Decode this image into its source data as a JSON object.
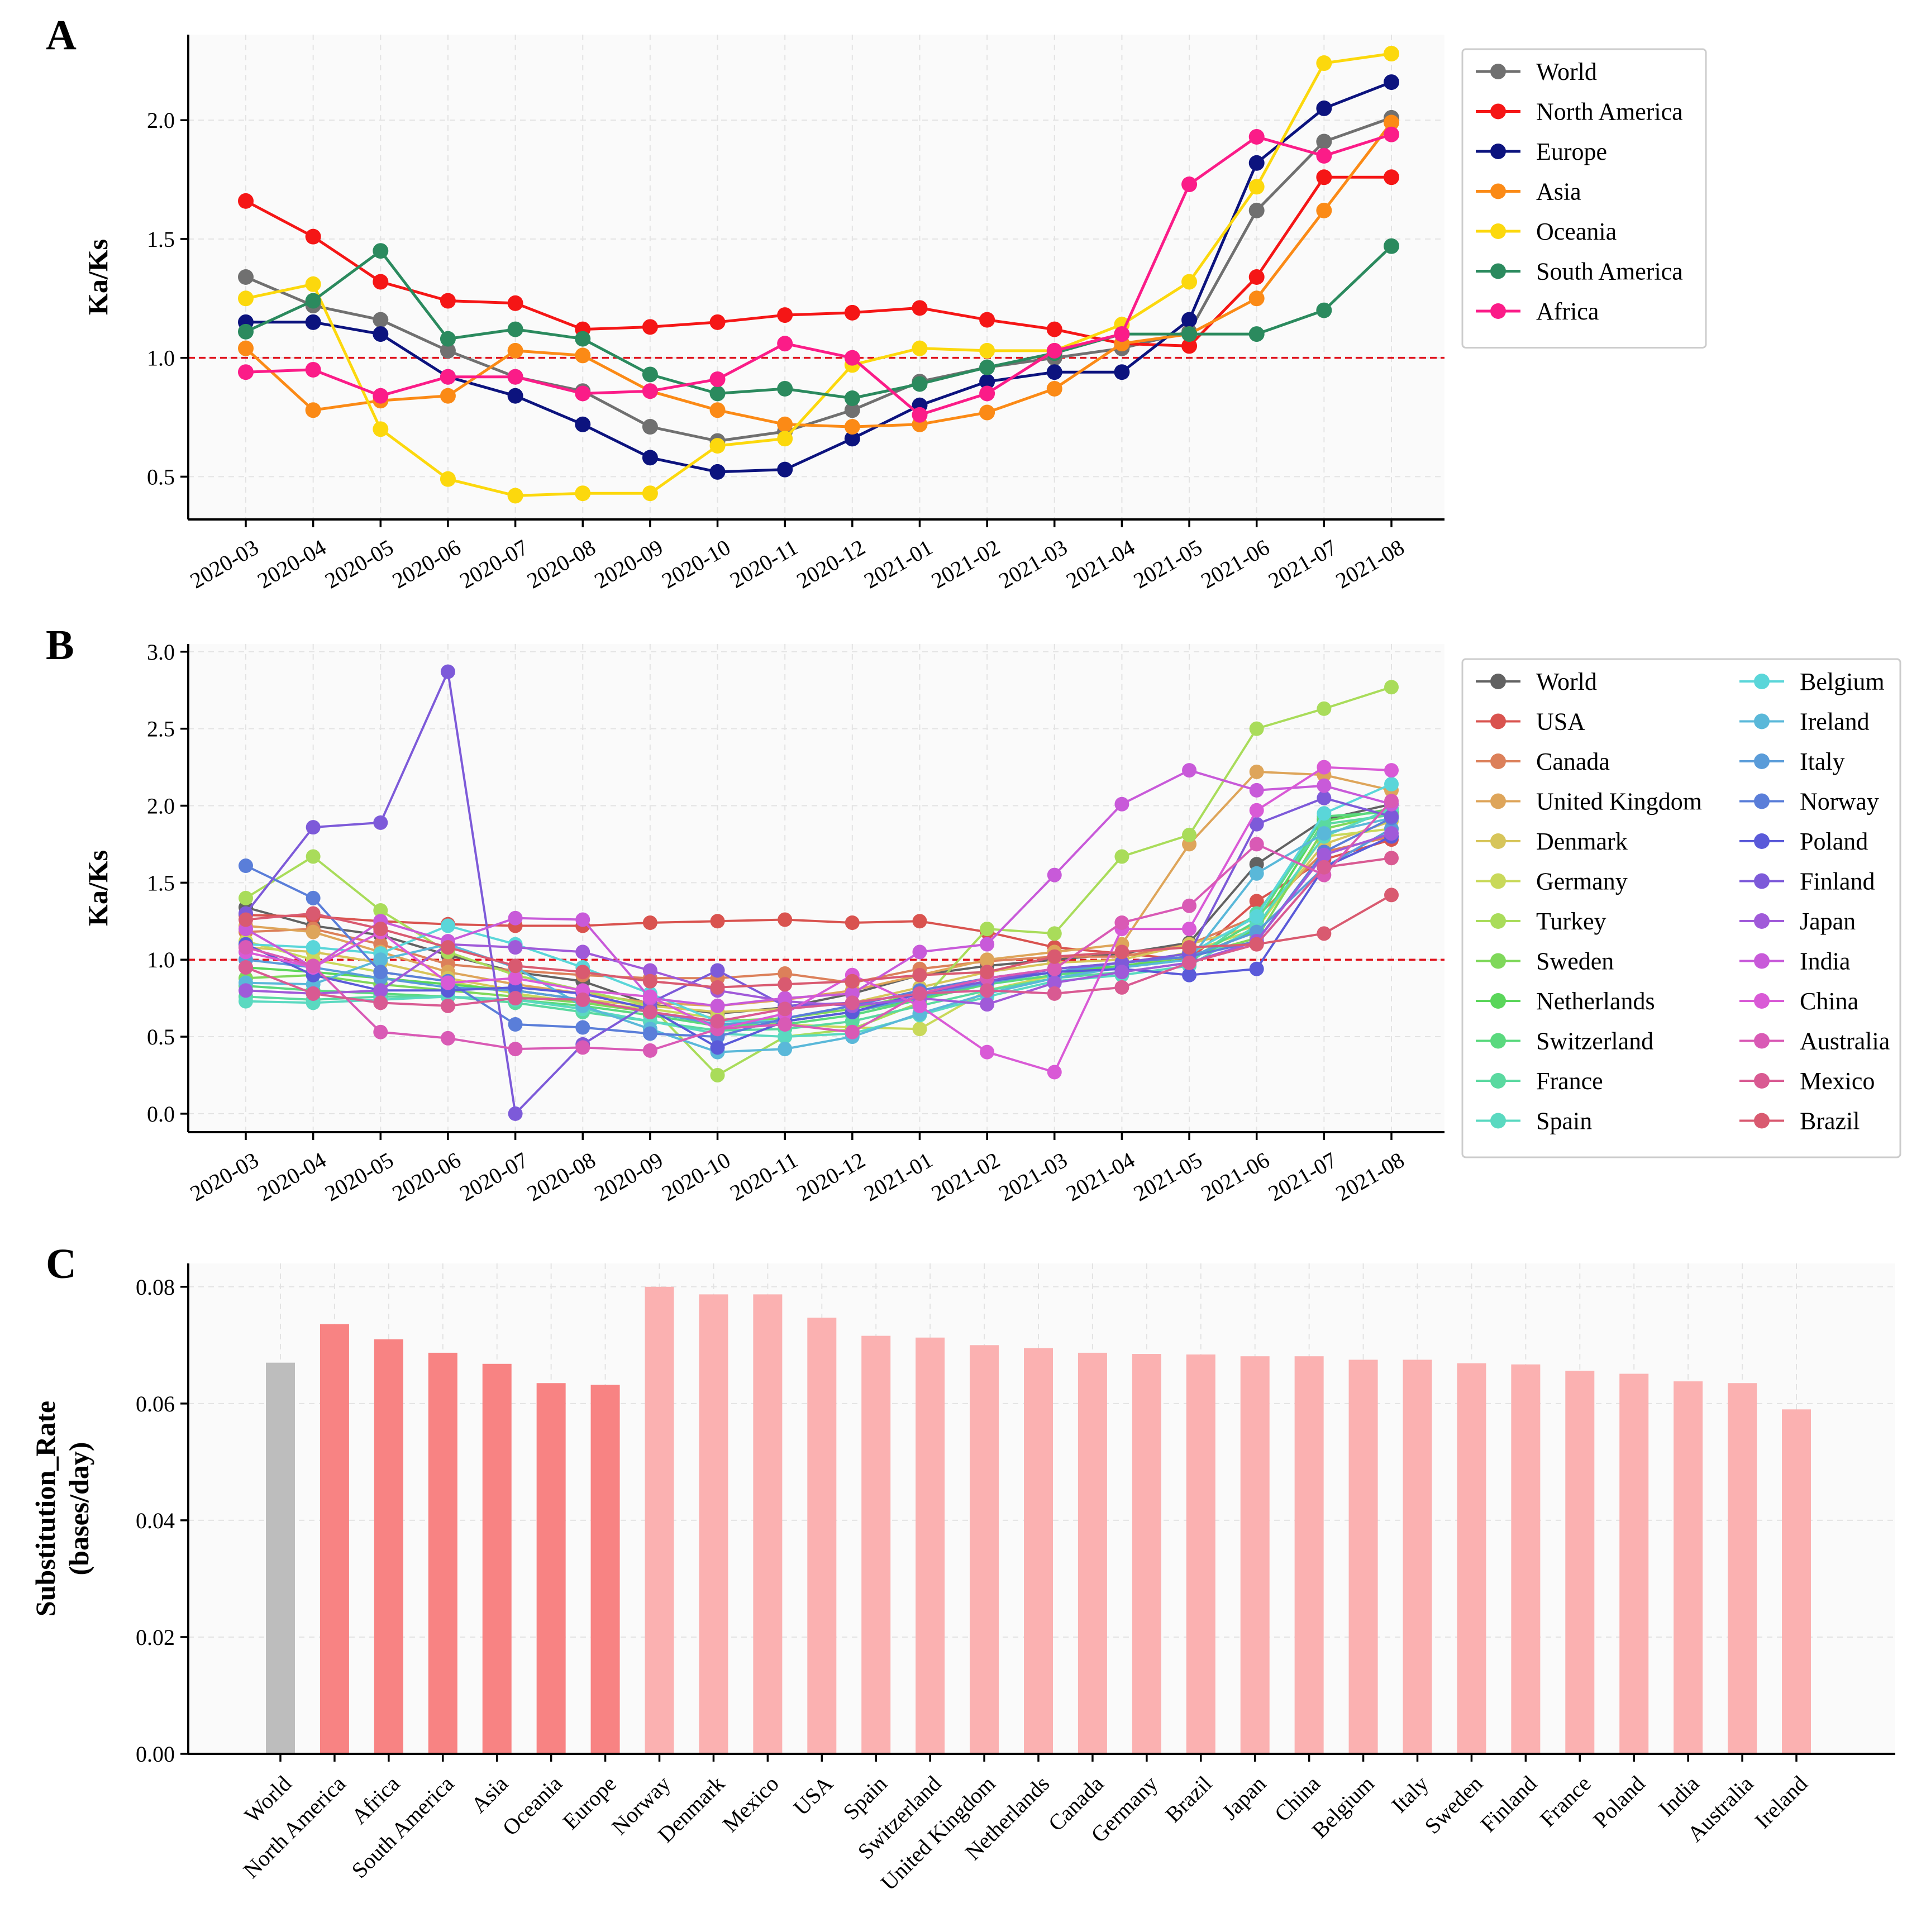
{
  "panel_labels": [
    "A",
    "B",
    "C"
  ],
  "chart_data": [
    {
      "type": "line",
      "panel": "A",
      "ylabel": "Ka/Ks",
      "xlabel": "",
      "ylim": [
        0.32,
        2.36
      ],
      "yticks": [
        0.5,
        1.0,
        1.5,
        2.0
      ],
      "grid": true,
      "reference_line": 1.0,
      "legend_position": "top-right outside",
      "legend_columns": 1,
      "categories": [
        "2020-03",
        "2020-04",
        "2020-05",
        "2020-06",
        "2020-07",
        "2020-08",
        "2020-09",
        "2020-10",
        "2020-11",
        "2020-12",
        "2021-01",
        "2021-02",
        "2021-03",
        "2021-04",
        "2021-05",
        "2021-06",
        "2021-07",
        "2021-08"
      ],
      "series": [
        {
          "name": "World",
          "color": "#707070",
          "values": [
            1.34,
            1.22,
            1.16,
            1.03,
            0.92,
            0.86,
            0.71,
            0.65,
            0.69,
            0.78,
            0.9,
            0.96,
            1.0,
            1.04,
            1.11,
            1.62,
            1.91,
            2.01
          ]
        },
        {
          "name": "North America",
          "color": "#f51616",
          "values": [
            1.66,
            1.51,
            1.32,
            1.24,
            1.23,
            1.12,
            1.13,
            1.15,
            1.18,
            1.19,
            1.21,
            1.16,
            1.12,
            1.06,
            1.05,
            1.34,
            1.76,
            1.76
          ]
        },
        {
          "name": "Europe",
          "color": "#0c137e",
          "values": [
            1.15,
            1.15,
            1.1,
            0.92,
            0.84,
            0.72,
            0.58,
            0.52,
            0.53,
            0.66,
            0.8,
            0.9,
            0.94,
            0.94,
            1.16,
            1.82,
            2.05,
            2.16
          ]
        },
        {
          "name": "Asia",
          "color": "#fb8a16",
          "values": [
            1.04,
            0.78,
            0.82,
            0.84,
            1.03,
            1.01,
            0.86,
            0.78,
            0.72,
            0.71,
            0.72,
            0.77,
            0.87,
            1.06,
            1.1,
            1.25,
            1.62,
            1.99
          ]
        },
        {
          "name": "Oceania",
          "color": "#fcd80d",
          "values": [
            1.25,
            1.31,
            0.7,
            0.49,
            0.42,
            0.43,
            0.43,
            0.63,
            0.66,
            0.97,
            1.04,
            1.03,
            1.03,
            1.14,
            1.32,
            1.72,
            2.24,
            2.28
          ]
        },
        {
          "name": "South America",
          "color": "#2b8a5e",
          "values": [
            1.11,
            1.24,
            1.45,
            1.08,
            1.12,
            1.08,
            0.93,
            0.85,
            0.87,
            0.83,
            0.89,
            0.96,
            1.02,
            1.1,
            1.1,
            1.1,
            1.2,
            1.47
          ]
        },
        {
          "name": "Africa",
          "color": "#fb1c88",
          "values": [
            0.94,
            0.95,
            0.84,
            0.92,
            0.92,
            0.85,
            0.86,
            0.91,
            1.06,
            1.0,
            0.76,
            0.85,
            1.03,
            1.1,
            1.73,
            1.93,
            1.85,
            1.94
          ]
        }
      ]
    },
    {
      "type": "line",
      "panel": "B",
      "ylabel": "Ka/Ks",
      "xlabel": "",
      "ylim": [
        -0.12,
        3.05
      ],
      "yticks": [
        0.0,
        0.5,
        1.0,
        1.5,
        2.0,
        2.5,
        3.0
      ],
      "grid": true,
      "reference_line": 1.0,
      "legend_position": "top-right outside",
      "legend_columns": 2,
      "categories": [
        "2020-03",
        "2020-04",
        "2020-05",
        "2020-06",
        "2020-07",
        "2020-08",
        "2020-09",
        "2020-10",
        "2020-11",
        "2020-12",
        "2021-01",
        "2021-02",
        "2021-03",
        "2021-04",
        "2021-05",
        "2021-06",
        "2021-07",
        "2021-08"
      ],
      "series": [
        {
          "name": "World",
          "color": "#626262",
          "values": [
            1.34,
            1.22,
            1.16,
            1.03,
            0.92,
            0.86,
            0.71,
            0.65,
            0.69,
            0.78,
            0.9,
            0.96,
            1.0,
            1.04,
            1.11,
            1.62,
            1.91,
            2.01
          ]
        },
        {
          "name": "USA",
          "color": "#d9534f",
          "values": [
            1.29,
            1.28,
            1.25,
            1.23,
            1.22,
            1.22,
            1.24,
            1.25,
            1.26,
            1.24,
            1.25,
            1.18,
            1.08,
            1.04,
            1.0,
            1.38,
            1.65,
            1.78
          ]
        },
        {
          "name": "Canada",
          "color": "#dc805a",
          "values": [
            1.18,
            1.2,
            1.1,
            0.97,
            0.93,
            0.9,
            0.88,
            0.88,
            0.91,
            0.85,
            0.94,
            0.99,
            1.02,
            1.02,
            1.1,
            1.28,
            1.7,
            1.8
          ]
        },
        {
          "name": "United Kingdom",
          "color": "#dea55a",
          "values": [
            1.22,
            1.18,
            1.05,
            0.92,
            0.84,
            0.78,
            0.72,
            0.7,
            0.74,
            0.8,
            0.9,
            1.0,
            1.05,
            1.1,
            1.75,
            2.22,
            2.2,
            2.1
          ]
        },
        {
          "name": "Denmark",
          "color": "#d7c55a",
          "values": [
            1.08,
            1.05,
            0.98,
            0.88,
            0.8,
            0.74,
            0.7,
            0.66,
            0.68,
            0.72,
            0.82,
            0.92,
            0.98,
            1.0,
            1.1,
            1.22,
            1.75,
            1.9
          ]
        },
        {
          "name": "Germany",
          "color": "#c9d95a",
          "values": [
            1.12,
            1.0,
            0.92,
            0.86,
            0.78,
            0.72,
            0.68,
            0.62,
            0.58,
            0.56,
            0.55,
            0.8,
            0.9,
            0.95,
            1.05,
            1.2,
            1.8,
            1.85
          ]
        },
        {
          "name": "Turkey",
          "color": "#a9dc5a",
          "values": [
            1.4,
            1.67,
            1.32,
            1.05,
            0.9,
            0.8,
            0.7,
            0.25,
            0.5,
            0.55,
            0.72,
            1.2,
            1.17,
            1.67,
            1.81,
            2.5,
            2.63,
            2.77
          ]
        },
        {
          "name": "Sweden",
          "color": "#7fd85a",
          "values": [
            0.88,
            0.9,
            0.84,
            0.8,
            0.76,
            0.72,
            0.66,
            0.6,
            0.62,
            0.68,
            0.78,
            0.86,
            0.92,
            0.96,
            1.02,
            1.14,
            1.85,
            1.95
          ]
        },
        {
          "name": "Netherlands",
          "color": "#5ad65a",
          "values": [
            0.95,
            0.92,
            0.88,
            0.84,
            0.8,
            0.74,
            0.66,
            0.58,
            0.6,
            0.66,
            0.75,
            0.85,
            0.92,
            0.96,
            1.0,
            1.2,
            1.9,
            1.98
          ]
        },
        {
          "name": "Switzerland",
          "color": "#5ad97e",
          "values": [
            0.83,
            0.8,
            0.78,
            0.76,
            0.74,
            0.7,
            0.64,
            0.57,
            0.58,
            0.64,
            0.74,
            0.84,
            0.9,
            0.95,
            1.0,
            1.25,
            1.93,
            1.96
          ]
        },
        {
          "name": "France",
          "color": "#5ad9a0",
          "values": [
            0.76,
            0.74,
            0.76,
            0.76,
            0.72,
            0.66,
            0.6,
            0.54,
            0.55,
            0.6,
            0.7,
            0.8,
            0.88,
            0.92,
            0.98,
            1.3,
            1.88,
            1.94
          ]
        },
        {
          "name": "Spain",
          "color": "#5ad9c0",
          "values": [
            0.73,
            0.72,
            0.74,
            0.76,
            0.74,
            0.68,
            0.6,
            0.52,
            0.5,
            0.52,
            0.64,
            0.76,
            0.86,
            0.9,
            0.96,
            1.22,
            1.8,
            1.98
          ]
        },
        {
          "name": "Belgium",
          "color": "#5ad6d9",
          "values": [
            1.1,
            1.08,
            1.04,
            1.22,
            1.1,
            0.95,
            0.78,
            0.6,
            0.6,
            0.66,
            0.76,
            0.86,
            0.92,
            0.98,
            1.04,
            1.28,
            1.95,
            2.14
          ]
        },
        {
          "name": "Ireland",
          "color": "#5ab8d9",
          "values": [
            0.85,
            0.84,
            1.0,
            1.1,
            0.95,
            0.7,
            0.55,
            0.4,
            0.42,
            0.5,
            0.65,
            0.78,
            0.88,
            0.95,
            1.0,
            1.56,
            1.82,
            1.92
          ]
        },
        {
          "name": "Italy",
          "color": "#5a9cd9",
          "values": [
            1.0,
            0.95,
            0.88,
            0.82,
            0.8,
            0.74,
            0.66,
            0.58,
            0.6,
            0.66,
            0.76,
            0.85,
            0.92,
            0.98,
            1.02,
            1.18,
            1.6,
            1.85
          ]
        },
        {
          "name": "Norway",
          "color": "#5a7ed9",
          "values": [
            1.61,
            1.4,
            0.92,
            0.86,
            0.58,
            0.56,
            0.52,
            0.5,
            0.62,
            0.7,
            0.8,
            0.88,
            0.94,
            0.98,
            1.02,
            1.12,
            1.7,
            1.92
          ]
        },
        {
          "name": "Poland",
          "color": "#5a5ad9",
          "values": [
            1.1,
            0.9,
            0.8,
            0.8,
            0.82,
            0.78,
            0.68,
            0.43,
            0.6,
            0.66,
            0.78,
            0.86,
            0.92,
            0.94,
            0.9,
            0.94,
            1.6,
            1.8
          ]
        },
        {
          "name": "Finland",
          "color": "#7d5ad9",
          "values": [
            1.3,
            1.86,
            1.89,
            2.87,
            0.0,
            0.45,
            0.72,
            0.93,
            0.7,
            0.72,
            0.78,
            0.86,
            0.94,
            0.98,
            1.04,
            1.88,
            2.05,
            1.93
          ]
        },
        {
          "name": "Japan",
          "color": "#a05ad9",
          "values": [
            0.8,
            0.78,
            0.8,
            1.1,
            1.08,
            1.05,
            0.93,
            0.8,
            0.73,
            0.7,
            0.75,
            0.71,
            0.85,
            0.92,
            0.98,
            1.12,
            1.68,
            1.82
          ]
        },
        {
          "name": "India",
          "color": "#c85ad9",
          "values": [
            1.2,
            0.95,
            1.25,
            1.12,
            1.27,
            1.26,
            0.75,
            0.7,
            0.75,
            0.78,
            1.05,
            1.1,
            1.55,
            2.01,
            2.23,
            2.1,
            2.13,
            2.01
          ]
        },
        {
          "name": "China",
          "color": "#d95ad6",
          "values": [
            1.05,
            0.95,
            1.18,
            0.85,
            0.88,
            0.8,
            0.76,
            0.55,
            0.65,
            0.9,
            0.7,
            0.4,
            0.27,
            1.2,
            1.2,
            1.97,
            2.25,
            2.23
          ]
        },
        {
          "name": "Australia",
          "color": "#d95ab5",
          "values": [
            1.08,
            0.96,
            0.53,
            0.49,
            0.42,
            0.43,
            0.41,
            0.55,
            0.58,
            0.53,
            0.78,
            0.88,
            0.94,
            1.24,
            1.35,
            1.75,
            1.55,
            2.03
          ]
        },
        {
          "name": "Mexico",
          "color": "#d95a92",
          "values": [
            0.95,
            0.78,
            0.72,
            0.7,
            0.75,
            0.74,
            0.66,
            0.6,
            0.68,
            0.72,
            0.78,
            0.8,
            0.78,
            0.82,
            0.98,
            1.1,
            1.6,
            1.66
          ]
        },
        {
          "name": "Brazil",
          "color": "#d95a70",
          "values": [
            1.26,
            1.3,
            1.2,
            1.08,
            0.96,
            0.92,
            0.86,
            0.82,
            0.84,
            0.86,
            0.9,
            0.92,
            1.02,
            1.05,
            1.08,
            1.1,
            1.17,
            1.42
          ]
        }
      ]
    },
    {
      "type": "bar",
      "panel": "C",
      "ylabel": "Substitution_Rate",
      "ylabel_line2": "(bases/day)",
      "xlabel": "",
      "ylim": [
        0.0,
        0.084
      ],
      "yticks": [
        0.0,
        0.02,
        0.04,
        0.06,
        0.08
      ],
      "grid": true,
      "categories": [
        "World",
        "North America",
        "Africa",
        "South America",
        "Asia",
        "Oceania",
        "Europe",
        "Norway",
        "Denmark",
        "Mexico",
        "USA",
        "Spain",
        "Switzerland",
        "United Kingdom",
        "Netherlands",
        "Canada",
        "Germany",
        "Brazil",
        "Japan",
        "China",
        "Belgium",
        "Italy",
        "Sweden",
        "Finland",
        "France",
        "Poland",
        "India",
        "Australia",
        "Ireland"
      ],
      "values": [
        0.067,
        0.0736,
        0.071,
        0.0687,
        0.0668,
        0.0635,
        0.0632,
        0.08,
        0.0787,
        0.0787,
        0.0747,
        0.0716,
        0.0713,
        0.07,
        0.0695,
        0.0687,
        0.0685,
        0.0684,
        0.0681,
        0.0681,
        0.0675,
        0.0675,
        0.0669,
        0.0667,
        0.0656,
        0.0651,
        0.0638,
        0.0635,
        0.059
      ],
      "bar_colors": {
        "world": "#bdbdbd",
        "continent": "#f88383",
        "country": "#fbb1b1"
      },
      "groups": [
        "world",
        "continent",
        "continent",
        "continent",
        "continent",
        "continent",
        "continent",
        "country",
        "country",
        "country",
        "country",
        "country",
        "country",
        "country",
        "country",
        "country",
        "country",
        "country",
        "country",
        "country",
        "country",
        "country",
        "country",
        "country",
        "country",
        "country",
        "country",
        "country",
        "country"
      ]
    }
  ]
}
